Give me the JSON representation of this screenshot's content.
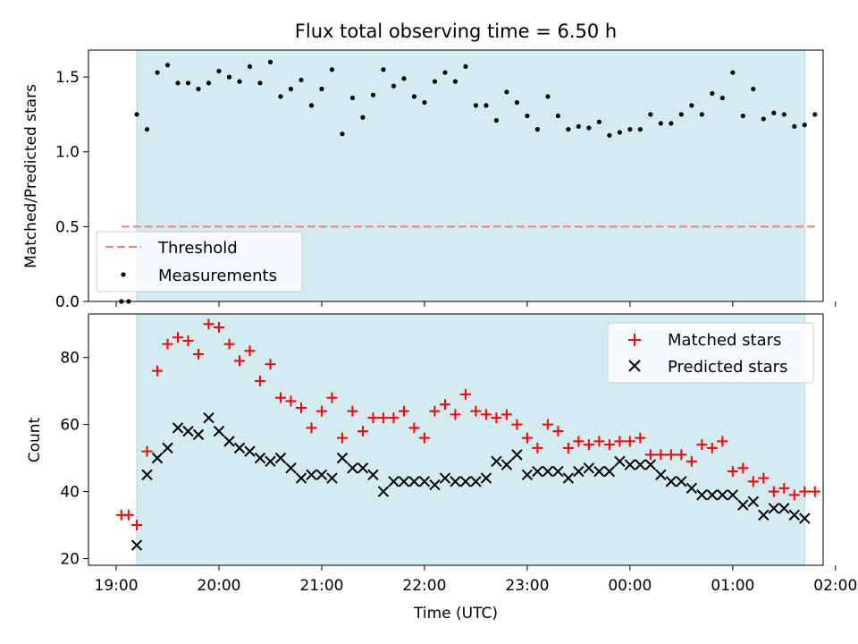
{
  "chart_data": [
    {
      "type": "scatter",
      "title": "Flux total observing time = 6.50 h",
      "ylabel": "Matched/Predicted stars",
      "xlabel": "",
      "ylim": [
        0,
        1.68
      ],
      "yticks": [
        0.0,
        0.5,
        1.0,
        1.5
      ],
      "ytick_labels": [
        "0.0",
        "0.5",
        "1.0",
        "1.5"
      ],
      "x_unit": "hours since 19:00 UTC",
      "xlim": [
        -0.27,
        6.88
      ],
      "shaded_interval": [
        0.2,
        6.7
      ],
      "legend_position": "lower-left",
      "threshold": {
        "name": "Threshold",
        "value": 0.5,
        "x_range": [
          0.05,
          6.8
        ],
        "color": "#f08080"
      },
      "series": [
        {
          "name": "Measurements",
          "color": "#000000",
          "marker": "dot",
          "x": [
            0.05,
            0.12,
            0.2,
            0.3,
            0.4,
            0.5,
            0.6,
            0.7,
            0.8,
            0.9,
            1.0,
            1.1,
            1.2,
            1.3,
            1.4,
            1.5,
            1.6,
            1.7,
            1.8,
            1.9,
            2.0,
            2.1,
            2.2,
            2.3,
            2.4,
            2.5,
            2.6,
            2.7,
            2.8,
            2.9,
            3.0,
            3.1,
            3.2,
            3.3,
            3.4,
            3.5,
            3.6,
            3.7,
            3.8,
            3.9,
            4.0,
            4.1,
            4.2,
            4.3,
            4.4,
            4.5,
            4.6,
            4.7,
            4.8,
            4.9,
            5.0,
            5.1,
            5.2,
            5.3,
            5.4,
            5.5,
            5.6,
            5.7,
            5.8,
            5.9,
            6.0,
            6.1,
            6.2,
            6.3,
            6.4,
            6.5,
            6.6,
            6.7,
            6.8
          ],
          "y": [
            0.0,
            0.0,
            1.25,
            1.15,
            1.53,
            1.58,
            1.46,
            1.46,
            1.42,
            1.46,
            1.54,
            1.5,
            1.47,
            1.57,
            1.46,
            1.6,
            1.37,
            1.42,
            1.48,
            1.31,
            1.42,
            1.55,
            1.12,
            1.36,
            1.23,
            1.38,
            1.55,
            1.44,
            1.49,
            1.37,
            1.33,
            1.47,
            1.53,
            1.47,
            1.57,
            1.31,
            1.31,
            1.21,
            1.4,
            1.33,
            1.24,
            1.15,
            1.37,
            1.24,
            1.15,
            1.17,
            1.16,
            1.2,
            1.11,
            1.13,
            1.15,
            1.15,
            1.25,
            1.19,
            1.19,
            1.25,
            1.31,
            1.25,
            1.39,
            1.36,
            1.53,
            1.24,
            1.42,
            1.22,
            1.26,
            1.25,
            1.17,
            1.18,
            1.25
          ]
        }
      ]
    },
    {
      "type": "scatter",
      "title": "",
      "ylabel": "Count",
      "xlabel": "Time (UTC)",
      "ylim": [
        18,
        93
      ],
      "yticks": [
        20,
        40,
        60,
        80
      ],
      "ytick_labels": [
        "20",
        "40",
        "60",
        "80"
      ],
      "x_unit": "hours since 19:00 UTC",
      "xlim": [
        -0.27,
        6.88
      ],
      "xticks": [
        0,
        1,
        2,
        3,
        4,
        5,
        6,
        7
      ],
      "xtick_labels": [
        "19:00",
        "20:00",
        "21:00",
        "22:00",
        "23:00",
        "00:00",
        "01:00",
        "02:00"
      ],
      "shaded_interval": [
        0.2,
        6.7
      ],
      "legend_position": "top-right",
      "series": [
        {
          "name": "Matched stars",
          "color": "#ff0000",
          "marker": "plus",
          "x": [
            0.05,
            0.12,
            0.2,
            0.3,
            0.4,
            0.5,
            0.6,
            0.7,
            0.8,
            0.9,
            1.0,
            1.1,
            1.2,
            1.3,
            1.4,
            1.5,
            1.6,
            1.7,
            1.8,
            1.9,
            2.0,
            2.1,
            2.2,
            2.3,
            2.4,
            2.5,
            2.6,
            2.7,
            2.8,
            2.9,
            3.0,
            3.1,
            3.2,
            3.3,
            3.4,
            3.5,
            3.6,
            3.7,
            3.8,
            3.9,
            4.0,
            4.1,
            4.2,
            4.3,
            4.4,
            4.5,
            4.6,
            4.7,
            4.8,
            4.9,
            5.0,
            5.1,
            5.2,
            5.3,
            5.4,
            5.5,
            5.6,
            5.7,
            5.8,
            5.9,
            6.0,
            6.1,
            6.2,
            6.3,
            6.4,
            6.5,
            6.6,
            6.7,
            6.8
          ],
          "y": [
            33,
            33,
            30,
            52,
            76,
            84,
            86,
            85,
            81,
            90,
            89,
            84,
            79,
            82,
            73,
            78,
            68,
            67,
            65,
            59,
            64,
            68,
            56,
            64,
            58,
            62,
            62,
            62,
            64,
            59,
            56,
            64,
            66,
            63,
            69,
            64,
            63,
            62,
            63,
            60,
            56,
            53,
            60,
            58,
            53,
            55,
            54,
            55,
            54,
            55,
            55,
            56,
            51,
            51,
            51,
            51,
            49,
            54,
            53,
            55,
            46,
            47,
            43,
            44,
            40,
            41,
            39,
            40,
            40
          ]
        },
        {
          "name": "Predicted stars",
          "color": "#000000",
          "marker": "x",
          "x": [
            0.2,
            0.3,
            0.4,
            0.5,
            0.6,
            0.7,
            0.8,
            0.9,
            1.0,
            1.1,
            1.2,
            1.3,
            1.4,
            1.5,
            1.6,
            1.7,
            1.8,
            1.9,
            2.0,
            2.1,
            2.2,
            2.3,
            2.4,
            2.5,
            2.6,
            2.7,
            2.8,
            2.9,
            3.0,
            3.1,
            3.2,
            3.3,
            3.4,
            3.5,
            3.6,
            3.7,
            3.8,
            3.9,
            4.0,
            4.1,
            4.2,
            4.3,
            4.4,
            4.5,
            4.6,
            4.7,
            4.8,
            4.9,
            5.0,
            5.1,
            5.2,
            5.3,
            5.4,
            5.5,
            5.6,
            5.7,
            5.8,
            5.9,
            6.0,
            6.1,
            6.2,
            6.3,
            6.4,
            6.5,
            6.6,
            6.7
          ],
          "y": [
            24,
            45,
            50,
            53,
            59,
            58,
            57,
            62,
            58,
            55,
            53,
            52,
            50,
            49,
            50,
            47,
            44,
            45,
            45,
            44,
            50,
            47,
            47,
            45,
            40,
            43,
            43,
            43,
            43,
            42,
            44,
            43,
            43,
            43,
            44,
            49,
            48,
            51,
            45,
            46,
            46,
            46,
            44,
            46,
            47,
            46,
            46,
            49,
            48,
            48,
            48,
            45,
            43,
            43,
            41,
            39,
            39,
            39,
            39,
            36,
            37,
            33,
            35,
            35,
            33,
            32
          ]
        }
      ]
    }
  ]
}
